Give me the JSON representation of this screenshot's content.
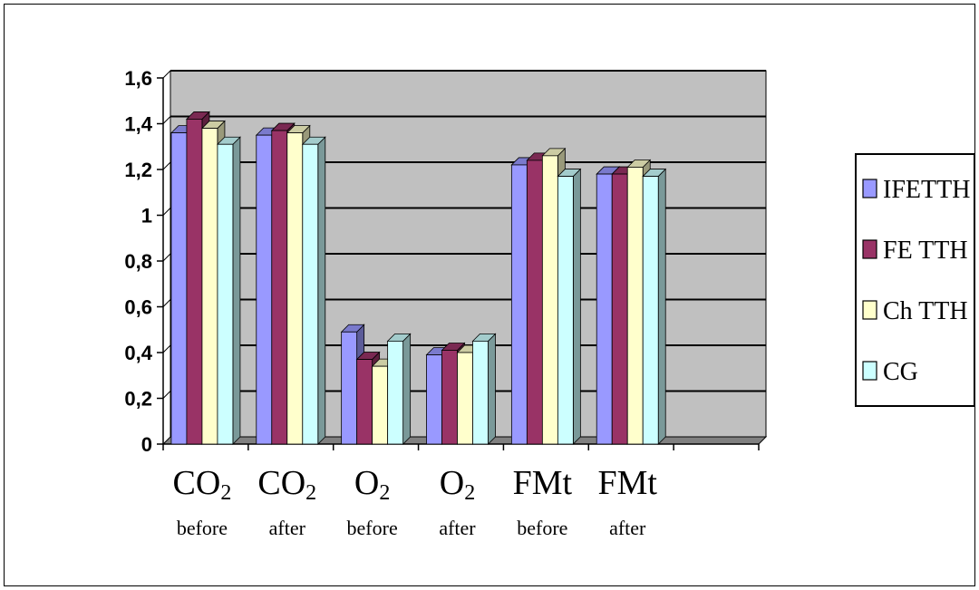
{
  "chart_data": {
    "type": "bar",
    "title": "",
    "xlabel": "",
    "ylabel": "",
    "ylim": [
      0,
      1.6
    ],
    "yticks": [
      "0",
      "0,2",
      "0,4",
      "0,6",
      "0,8",
      "1",
      "1,2",
      "1,4",
      "1,6"
    ],
    "ytick_values": [
      0,
      0.2,
      0.4,
      0.6,
      0.8,
      1.0,
      1.2,
      1.4,
      1.6
    ],
    "grid": true,
    "legend_position": "right",
    "categories": [
      {
        "main": "CO",
        "sub": "2",
        "note": "before"
      },
      {
        "main": "CO",
        "sub": "2",
        "note": "after"
      },
      {
        "main": "O",
        "sub": "2",
        "note": "before"
      },
      {
        "main": "O",
        "sub": "2",
        "note": "after"
      },
      {
        "main": "FMt",
        "sub": "",
        "note": "before"
      },
      {
        "main": "FMt",
        "sub": "",
        "note": "after"
      }
    ],
    "series": [
      {
        "name": "IFETTH",
        "color": "#9999ff",
        "values": [
          1.36,
          1.35,
          0.49,
          0.39,
          1.22,
          1.18
        ]
      },
      {
        "name": "FE TTH",
        "color": "#993366",
        "values": [
          1.42,
          1.37,
          0.37,
          0.41,
          1.24,
          1.18
        ]
      },
      {
        "name": "Ch TTH",
        "color": "#ffffcc",
        "values": [
          1.38,
          1.36,
          0.34,
          0.4,
          1.26,
          1.21
        ]
      },
      {
        "name": "CG",
        "color": "#ccffff",
        "values": [
          1.31,
          1.31,
          0.45,
          0.45,
          1.17,
          1.17
        ]
      }
    ],
    "colors": {
      "plot_background": "#c0c0c0",
      "gridline": "#000000",
      "floor": "#808080"
    }
  }
}
